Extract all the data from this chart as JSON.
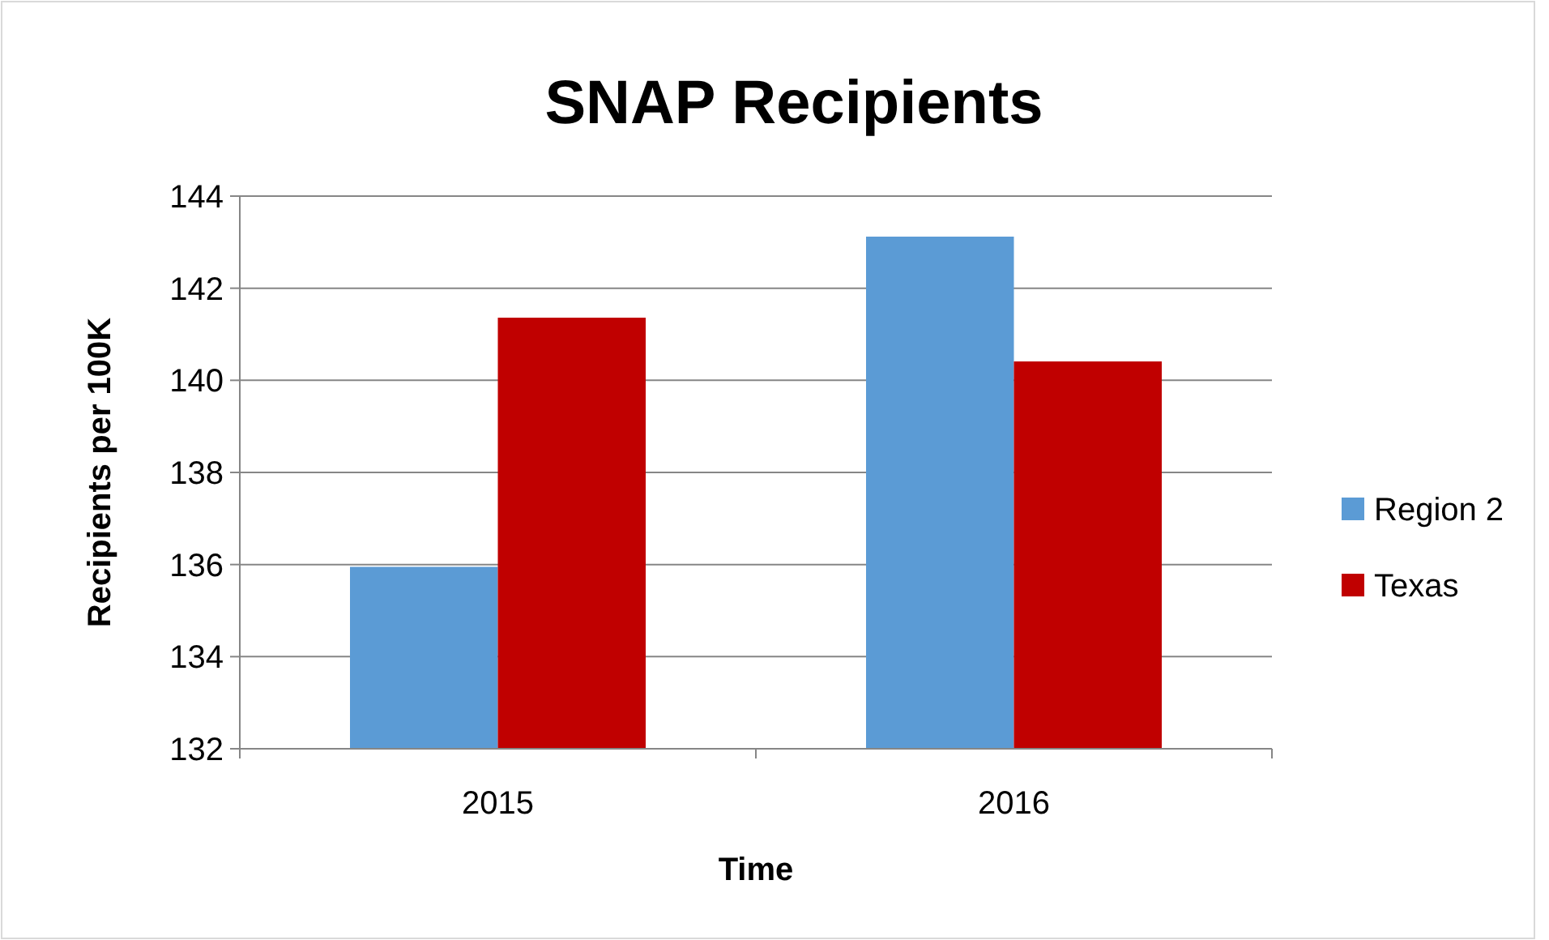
{
  "chart_data": {
    "type": "bar",
    "title": "SNAP Recipients",
    "xlabel": "Time",
    "ylabel": "Recipients per 100K",
    "categories": [
      "2015",
      "2016"
    ],
    "series": [
      {
        "name": "Region 2",
        "color": "#5b9bd5",
        "values": [
          135.95,
          143.12
        ]
      },
      {
        "name": "Texas",
        "color": "#c00000",
        "values": [
          141.36,
          140.41
        ]
      }
    ],
    "ylim": [
      132,
      144
    ],
    "yticks": [
      132,
      134,
      136,
      138,
      140,
      142,
      144
    ],
    "grid": "y",
    "legend": "right"
  }
}
